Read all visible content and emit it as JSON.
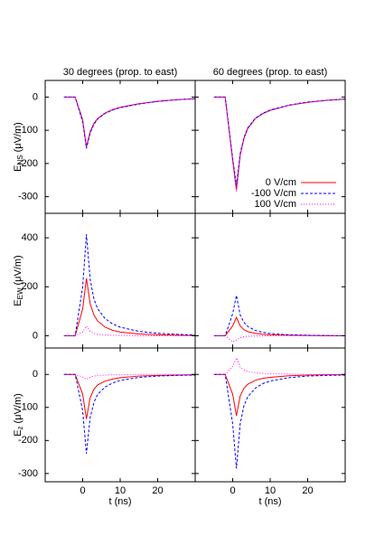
{
  "chart_data": [
    {
      "type": "line",
      "title": "30 degrees (prop. to east)",
      "ylabel": {
        "main": "E",
        "sub": "NS",
        "unit": "(μV/m)"
      },
      "x": [
        -5,
        -2,
        0,
        1,
        2,
        3,
        4,
        6,
        8,
        10,
        15,
        20,
        25,
        30
      ],
      "xlim": [
        -10,
        30
      ],
      "xticks": [
        0,
        10,
        20
      ],
      "xticklabels": false,
      "ylim": [
        -350,
        50
      ],
      "yticks": [
        0,
        -100,
        -200,
        -300
      ],
      "yticklabels": true,
      "series": [
        {
          "color": "#ff0000",
          "dash": "solid",
          "values": [
            0,
            0,
            -70,
            -150,
            -105,
            -80,
            -65,
            -48,
            -38,
            -31,
            -20,
            -13,
            -8,
            -5
          ]
        },
        {
          "color": "#0000ff",
          "dash": "dashed",
          "values": [
            0,
            0,
            -75,
            -155,
            -108,
            -82,
            -66,
            -49,
            -39,
            -32,
            -21,
            -13,
            -8,
            -5
          ]
        },
        {
          "color": "#ff00ff",
          "dash": "dotted",
          "values": [
            0,
            0,
            -65,
            -145,
            -102,
            -78,
            -63,
            -47,
            -37,
            -30,
            -20,
            -12,
            -8,
            -5
          ]
        }
      ]
    },
    {
      "type": "line",
      "title": "60 degrees (prop. to east)",
      "x": [
        -5,
        -2,
        0,
        1,
        2,
        3,
        4,
        6,
        8,
        10,
        15,
        20,
        25,
        30
      ],
      "xlim": [
        -10,
        30
      ],
      "xticks": [
        0,
        10,
        20
      ],
      "xticklabels": false,
      "ylim": [
        -350,
        50
      ],
      "yticks": [
        0,
        -100,
        -200,
        -300
      ],
      "yticklabels": false,
      "legend": "lower right",
      "series": [
        {
          "name": "0 V/cm",
          "color": "#ff0000",
          "dash": "solid",
          "values": [
            0,
            0,
            -190,
            -280,
            -175,
            -125,
            -95,
            -65,
            -50,
            -40,
            -25,
            -16,
            -10,
            -6
          ]
        },
        {
          "name": "-100 V/cm",
          "color": "#0000ff",
          "dash": "dashed",
          "values": [
            0,
            0,
            -185,
            -265,
            -170,
            -122,
            -93,
            -64,
            -49,
            -39,
            -24,
            -15,
            -10,
            -6
          ]
        },
        {
          "name": "100 V/cm",
          "color": "#ff00ff",
          "dash": "dotted",
          "values": [
            0,
            0,
            -195,
            -285,
            -178,
            -127,
            -96,
            -66,
            -51,
            -41,
            -25,
            -16,
            -10,
            -6
          ]
        }
      ]
    },
    {
      "type": "line",
      "ylabel": {
        "main": "E",
        "sub": "EW",
        "unit": "(μV/m)"
      },
      "x": [
        -5,
        -2,
        0,
        1,
        2,
        3,
        4,
        6,
        8,
        10,
        15,
        20,
        25,
        30
      ],
      "xlim": [
        -10,
        30
      ],
      "xticks": [
        0,
        10,
        20
      ],
      "xticklabels": false,
      "ylim": [
        -50,
        500
      ],
      "yticks": [
        0,
        200,
        400
      ],
      "yticklabels": true,
      "series": [
        {
          "color": "#ff0000",
          "dash": "solid",
          "values": [
            0,
            0,
            110,
            235,
            130,
            85,
            60,
            35,
            22,
            15,
            7,
            4,
            2,
            1
          ]
        },
        {
          "color": "#0000ff",
          "dash": "dashed",
          "values": [
            0,
            0,
            200,
            415,
            230,
            150,
            110,
            70,
            48,
            35,
            18,
            10,
            6,
            3
          ]
        },
        {
          "color": "#ff00ff",
          "dash": "dotted",
          "values": [
            0,
            0,
            15,
            40,
            18,
            10,
            6,
            3,
            2,
            1,
            0,
            0,
            0,
            0
          ]
        }
      ]
    },
    {
      "type": "line",
      "x": [
        -5,
        -2,
        0,
        1,
        2,
        3,
        4,
        6,
        8,
        10,
        15,
        20,
        25,
        30
      ],
      "xlim": [
        -10,
        30
      ],
      "xticks": [
        0,
        10,
        20
      ],
      "xticklabels": false,
      "ylim": [
        -50,
        500
      ],
      "yticks": [
        0,
        200,
        400
      ],
      "yticklabels": false,
      "series": [
        {
          "color": "#ff0000",
          "dash": "solid",
          "values": [
            0,
            0,
            40,
            75,
            40,
            25,
            17,
            10,
            6,
            4,
            2,
            1,
            0,
            0
          ]
        },
        {
          "color": "#0000ff",
          "dash": "dashed",
          "values": [
            0,
            0,
            90,
            165,
            85,
            55,
            38,
            22,
            14,
            9,
            4,
            2,
            1,
            0
          ]
        },
        {
          "color": "#ff00ff",
          "dash": "dotted",
          "values": [
            0,
            0,
            -25,
            -18,
            -8,
            -4,
            -2,
            -1,
            0,
            0,
            0,
            0,
            0,
            0
          ]
        }
      ]
    },
    {
      "type": "line",
      "ylabel": {
        "main": "E",
        "sub": "z",
        "unit": "(μV/m)"
      },
      "xlabel": "t (ns)",
      "x": [
        -5,
        -2,
        0,
        1,
        2,
        3,
        4,
        6,
        8,
        10,
        15,
        20,
        25,
        30
      ],
      "xlim": [
        -10,
        30
      ],
      "xticks": [
        0,
        10,
        20
      ],
      "xticklabels": true,
      "ylim": [
        -325,
        80
      ],
      "yticks": [
        0,
        -100,
        -200,
        -300
      ],
      "yticklabels": true,
      "series": [
        {
          "color": "#ff0000",
          "dash": "solid",
          "values": [
            0,
            0,
            -60,
            -135,
            -70,
            -45,
            -32,
            -20,
            -14,
            -10,
            -5,
            -3,
            -2,
            -1
          ]
        },
        {
          "color": "#0000ff",
          "dash": "dashed",
          "values": [
            0,
            0,
            -110,
            -240,
            -130,
            -85,
            -60,
            -38,
            -26,
            -18,
            -9,
            -5,
            -3,
            -2
          ]
        },
        {
          "color": "#ff00ff",
          "dash": "dotted",
          "values": [
            0,
            0,
            -8,
            -15,
            -8,
            -5,
            -3,
            -2,
            -1,
            -1,
            0,
            0,
            0,
            0
          ]
        }
      ]
    },
    {
      "type": "line",
      "xlabel": "t (ns)",
      "x": [
        -5,
        -2,
        0,
        1,
        2,
        3,
        4,
        6,
        8,
        10,
        15,
        20,
        25,
        30
      ],
      "xlim": [
        -10,
        30
      ],
      "xticks": [
        0,
        10,
        20
      ],
      "xticklabels": true,
      "ylim": [
        -325,
        80
      ],
      "yticks": [
        0,
        -100,
        -200,
        -300
      ],
      "yticklabels": false,
      "series": [
        {
          "color": "#ff0000",
          "dash": "solid",
          "values": [
            0,
            0,
            -60,
            -125,
            -65,
            -42,
            -30,
            -18,
            -12,
            -9,
            -4,
            -2,
            -1,
            -1
          ]
        },
        {
          "color": "#0000ff",
          "dash": "dashed",
          "values": [
            0,
            0,
            -150,
            -285,
            -150,
            -95,
            -68,
            -42,
            -28,
            -20,
            -10,
            -5,
            -3,
            -2
          ]
        },
        {
          "color": "#ff00ff",
          "dash": "dotted",
          "values": [
            0,
            0,
            25,
            50,
            22,
            13,
            9,
            5,
            3,
            2,
            1,
            0,
            0,
            0
          ]
        }
      ]
    }
  ]
}
